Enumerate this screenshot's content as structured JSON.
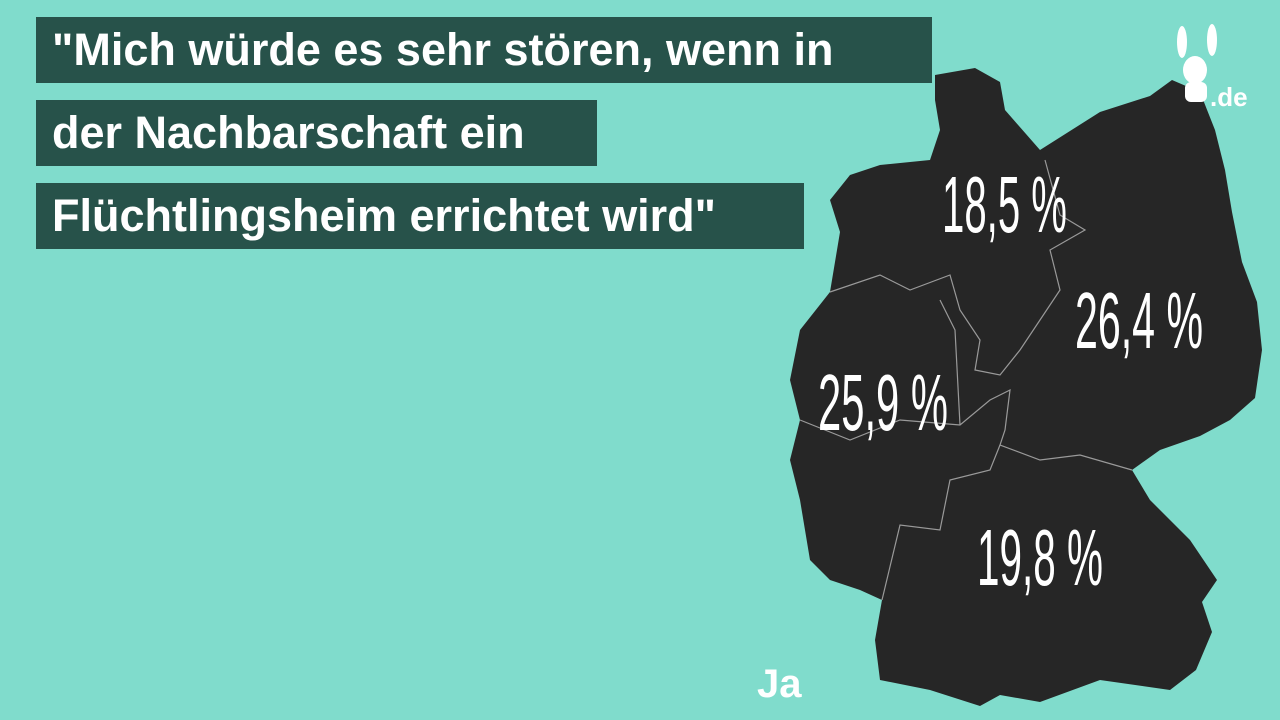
{
  "header": {
    "title_lines": [
      "\"Mich würde es sehr stören, wenn in",
      "der Nachbarschaft ein",
      "Flüchtlingsheim errichtet wird\""
    ]
  },
  "map": {
    "regions": [
      {
        "label": "18,5 %"
      },
      {
        "label": "26,4 %"
      },
      {
        "label": "25,9 %"
      },
      {
        "label": "19,8 %"
      }
    ]
  },
  "answer": "Ja",
  "logo": {
    "text": ".de"
  }
}
